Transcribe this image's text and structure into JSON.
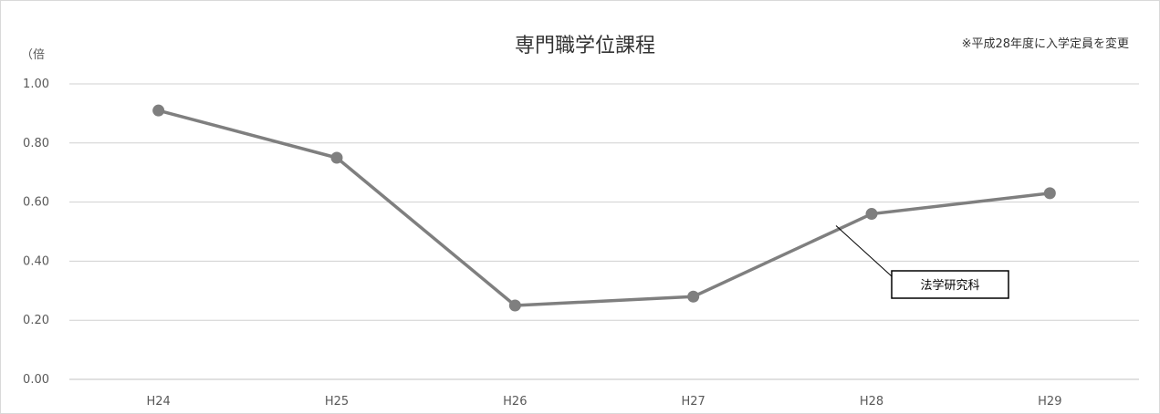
{
  "chart_data": {
    "type": "line",
    "title": "専門職学位課程",
    "note": "※平成28年度に入学定員を変更",
    "ylabel": "（倍",
    "xlabel": "",
    "categories": [
      "H24",
      "H25",
      "H26",
      "H27",
      "H28",
      "H29"
    ],
    "series": [
      {
        "name": "法学研究科",
        "values": [
          0.91,
          0.75,
          0.25,
          0.28,
          0.56,
          0.63
        ],
        "color": "#7f7f7f"
      }
    ],
    "ylim": [
      0,
      1
    ],
    "yticks": [
      "0.00",
      "0.20",
      "0.40",
      "0.60",
      "0.80",
      "1.00"
    ],
    "grid": true,
    "legend": "callout"
  }
}
